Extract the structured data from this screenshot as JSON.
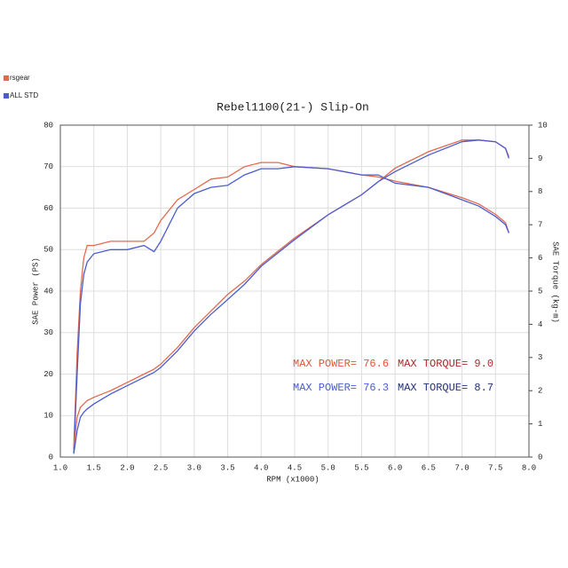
{
  "chart_data": {
    "type": "line",
    "title": "Rebel1100(21-) Slip-On",
    "x_label": "RPM (x1000)",
    "y_label": "SAE Power (PS)",
    "y2_label": "SAE Torque (kg-m)",
    "x": [
      1.2,
      1.25,
      1.3,
      1.35,
      1.4,
      1.5,
      1.75,
      2.0,
      2.25,
      2.4,
      2.5,
      2.75,
      3.0,
      3.25,
      3.5,
      3.75,
      4.0,
      4.25,
      4.5,
      5.0,
      5.5,
      5.75,
      6.0,
      6.5,
      7.0,
      7.25,
      7.5,
      7.65,
      7.7
    ],
    "series": [
      {
        "name": "rsgear",
        "color": "#e0694f",
        "values": [
          2,
          25,
          40,
          48,
          51,
          51,
          52,
          52,
          52,
          54,
          57,
          62,
          64.5,
          67,
          67.5,
          70,
          71,
          71,
          70,
          69.5,
          68,
          67.5,
          66.5,
          65,
          62.5,
          61,
          58.5,
          56.5,
          54
        ]
      },
      {
        "name": "ALL STD",
        "color": "#4a5cd0",
        "values": [
          1,
          20,
          37,
          44,
          47,
          49,
          50,
          50,
          51,
          49.5,
          52,
          60,
          63.5,
          65,
          65.5,
          68,
          69.5,
          69.5,
          70,
          69.5,
          68,
          68,
          66,
          65,
          62,
          60.5,
          58,
          56,
          54
        ]
      },
      {
        "name": "rsgear",
        "color": "#e0694f",
        "axis": "y2",
        "values": [
          0.3,
          1.2,
          1.5,
          1.6,
          1.7,
          1.8,
          2.0,
          2.25,
          2.5,
          2.65,
          2.8,
          3.3,
          3.9,
          4.4,
          4.9,
          5.3,
          5.8,
          6.2,
          6.6,
          7.3,
          7.9,
          8.3,
          8.7,
          9.2,
          9.55,
          9.55,
          9.5,
          9.3,
          9.05
        ]
      },
      {
        "name": "ALL STD",
        "color": "#4a5cd0",
        "axis": "y2",
        "values": [
          0.1,
          0.8,
          1.2,
          1.35,
          1.45,
          1.6,
          1.9,
          2.15,
          2.4,
          2.55,
          2.7,
          3.2,
          3.8,
          4.3,
          4.75,
          5.2,
          5.75,
          6.15,
          6.55,
          7.3,
          7.9,
          8.3,
          8.6,
          9.1,
          9.5,
          9.55,
          9.5,
          9.3,
          9.0
        ]
      }
    ],
    "xlim": [
      1.0,
      8.0
    ],
    "xticks": [
      {
        "value": 1.0,
        "label": "1.0"
      },
      1.5,
      {
        "value": 2.0,
        "label": "2.0"
      },
      2.5,
      {
        "value": 3.0,
        "label": "3.0"
      },
      3.5,
      {
        "value": 4.0,
        "label": "4.0"
      },
      4.5,
      {
        "value": 5.0,
        "label": "5.0"
      },
      5.5,
      {
        "value": 6.0,
        "label": "6.0"
      },
      6.5,
      {
        "value": 7.0,
        "label": "7.0"
      },
      7.5,
      {
        "value": 8.0,
        "label": "8.0"
      }
    ],
    "ylim": [
      0,
      80
    ],
    "yticks": [
      0,
      10,
      20,
      30,
      40,
      50,
      60,
      70,
      80
    ],
    "y2lim": [
      0,
      10
    ],
    "y2ticks": [
      0,
      1,
      2,
      3,
      4,
      5,
      6,
      7,
      8,
      9,
      10
    ],
    "grid": true,
    "annotations": [
      {
        "text": "MAX POWER= 76.6",
        "color": "#e0553a"
      },
      {
        "text": "MAX TORQUE= 9.0",
        "color": "#a82a2a"
      },
      {
        "text": "MAX POWER= 76.3",
        "color": "#4a5cd0"
      },
      {
        "text": "MAX TORQUE= 8.7",
        "color": "#23307a"
      }
    ]
  }
}
